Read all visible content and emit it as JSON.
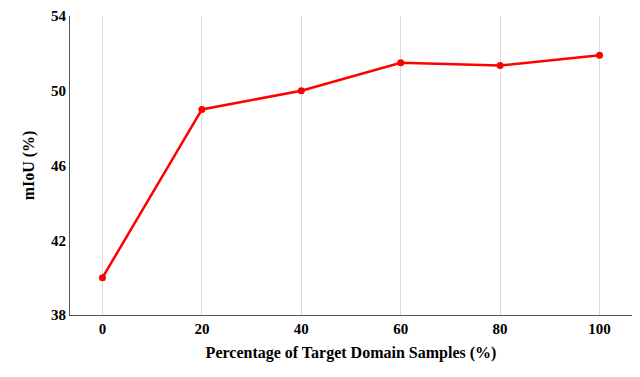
{
  "chart_data": {
    "type": "line",
    "x_label": "Percentage of Target Domain Samples (%)",
    "y_label": "mIoU (%)",
    "categories": [
      "0",
      "20",
      "40",
      "60",
      "80",
      "100"
    ],
    "values": [
      40.0,
      49.0,
      50.0,
      51.5,
      51.35,
      51.9
    ],
    "color": "#ff0000",
    "marker": "circle",
    "line_style": "solid",
    "ylim": [
      38,
      54
    ],
    "yticks": [
      38,
      42,
      46,
      50,
      54
    ],
    "grid": true
  }
}
